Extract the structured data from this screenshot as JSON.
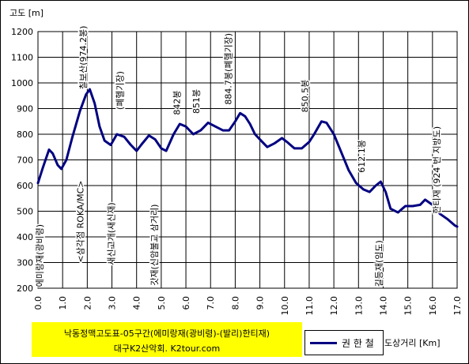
{
  "chart_data": {
    "type": "line",
    "title_line1": "낙동정맥고도표-05구간(에미랑재(광비령)-(발리)한티재)",
    "title_line2": "대구K2산악회. K2tour.com",
    "xlabel": "도상거리 [Km]",
    "ylabel": "고도 [m]",
    "xlim": [
      0,
      17
    ],
    "ylim": [
      200,
      1200
    ],
    "x_ticks": [
      "0.0",
      "1.0",
      "2.0",
      "3.0",
      "4.0",
      "5.0",
      "6.0",
      "7.0",
      "8.0",
      "9.0",
      "10.0",
      "11.0",
      "12.0",
      "13.0",
      "14.0",
      "15.0",
      "16.0",
      "17.0"
    ],
    "y_ticks": [
      "200",
      "300",
      "400",
      "500",
      "600",
      "700",
      "800",
      "900",
      "1000",
      "1100",
      "1200"
    ],
    "grid": true,
    "series": [
      {
        "name": "권 한 철",
        "color": "#000080",
        "x": [
          0.0,
          0.2,
          0.45,
          0.6,
          0.8,
          0.95,
          1.15,
          1.4,
          1.7,
          1.95,
          2.1,
          2.3,
          2.5,
          2.7,
          2.95,
          3.2,
          3.5,
          3.75,
          4.0,
          4.2,
          4.5,
          4.75,
          5.0,
          5.2,
          5.5,
          5.75,
          6.0,
          6.3,
          6.6,
          6.9,
          7.2,
          7.5,
          7.75,
          8.0,
          8.2,
          8.4,
          8.6,
          8.8,
          9.1,
          9.3,
          9.6,
          9.9,
          10.1,
          10.4,
          10.7,
          11.0,
          11.2,
          11.5,
          11.7,
          12.0,
          12.3,
          12.6,
          12.9,
          13.2,
          13.45,
          13.7,
          13.9,
          14.1,
          14.3,
          14.6,
          14.9,
          15.2,
          15.5,
          15.7,
          16.0,
          16.3,
          16.6,
          16.9,
          17.0
        ],
        "y": [
          610,
          670,
          740,
          725,
          680,
          665,
          700,
          790,
          890,
          955,
          975,
          920,
          830,
          775,
          758,
          800,
          790,
          760,
          735,
          760,
          795,
          780,
          745,
          735,
          800,
          840,
          830,
          800,
          815,
          845,
          830,
          815,
          815,
          850,
          882,
          870,
          840,
          800,
          770,
          750,
          765,
          785,
          770,
          745,
          745,
          770,
          800,
          850,
          845,
          800,
          730,
          660,
          610,
          585,
          575,
          600,
          615,
          575,
          510,
          495,
          520,
          520,
          525,
          545,
          525,
          490,
          470,
          445,
          440
        ]
      }
    ],
    "annotations": [
      {
        "text": "에미랑재(광비령)",
        "x": 0.2,
        "y": 205
      },
      {
        "text": "<삼각점 ROKA/MC>",
        "x": 1.85,
        "y": 300
      },
      {
        "text": "칠보산(974.2봉)",
        "x": 1.95,
        "y": 975
      },
      {
        "text": "새신고개(새신재)",
        "x": 3.1,
        "y": 290
      },
      {
        "text": "(폐헬기장)",
        "x": 3.45,
        "y": 895
      },
      {
        "text": "갓재(신암불교 삼거리)",
        "x": 4.85,
        "y": 210
      },
      {
        "text": "842봉",
        "x": 5.75,
        "y": 875
      },
      {
        "text": "851봉",
        "x": 6.55,
        "y": 880
      },
      {
        "text": "884.7봉(폐헬기장)",
        "x": 7.85,
        "y": 915
      },
      {
        "text": "850.5봉",
        "x": 10.95,
        "y": 885
      },
      {
        "text": "612.1봉",
        "x": 13.25,
        "y": 650
      },
      {
        "text": "길등재(임도)",
        "x": 13.95,
        "y": 205
      },
      {
        "text": "한티재 (924 번 지방도)",
        "x": 16.3,
        "y": 490
      }
    ]
  }
}
